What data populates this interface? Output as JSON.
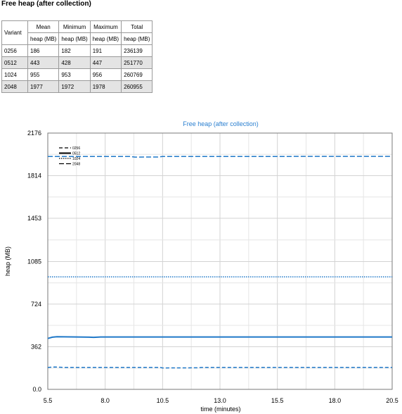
{
  "page": {
    "title": "Free heap (after collection)"
  },
  "table": {
    "header_variant": "Variant",
    "header_top": [
      "Mean",
      "Minimum",
      "Maximum",
      "Total"
    ],
    "header_bottom": [
      "heap (MB)",
      "heap (MB)",
      "heap (MB)",
      "heap (MB)"
    ],
    "rows": [
      [
        "0256",
        "186",
        "182",
        "191",
        "236139"
      ],
      [
        "0512",
        "443",
        "428",
        "447",
        "251770"
      ],
      [
        "1024",
        "955",
        "953",
        "956",
        "260769"
      ],
      [
        "2048",
        "1977",
        "1972",
        "1978",
        "260955"
      ]
    ]
  },
  "chart_data": {
    "type": "line",
    "title": "Free heap (after collection)",
    "xlabel": "time (minutes)",
    "ylabel": "heap (MB)",
    "xlim": [
      5.5,
      20.5
    ],
    "ylim": [
      0,
      2176
    ],
    "x_ticks": [
      "5.5",
      "8.0",
      "10.5",
      "13.0",
      "15.5",
      "18.0",
      "20.5"
    ],
    "y_ticks": [
      "0.0",
      "362",
      "724",
      "1085",
      "1453",
      "1814",
      "2176"
    ],
    "x_tick_values": [
      5.5,
      8.0,
      10.5,
      13.0,
      15.5,
      18.0,
      20.5
    ],
    "y_tick_values": [
      0,
      362,
      724,
      1085,
      1453,
      1814,
      2176
    ],
    "grid": true,
    "legend_position": "top-left",
    "color": "#1f78c8",
    "series": [
      {
        "name": "0256",
        "style": "dashed",
        "points": [
          [
            5.5,
            186
          ],
          [
            5.8,
            190
          ],
          [
            6.2,
            186
          ],
          [
            10.4,
            186
          ],
          [
            10.5,
            182
          ],
          [
            12.0,
            183
          ],
          [
            12.2,
            186
          ],
          [
            20.5,
            186
          ]
        ]
      },
      {
        "name": "0512",
        "style": "solid",
        "points": [
          [
            5.5,
            432
          ],
          [
            5.7,
            443
          ],
          [
            5.9,
            447
          ],
          [
            7.1,
            444
          ],
          [
            7.5,
            442
          ],
          [
            7.8,
            445
          ],
          [
            20.5,
            445
          ]
        ]
      },
      {
        "name": "1024",
        "style": "dotted",
        "points": [
          [
            5.5,
            955
          ],
          [
            20.5,
            955
          ]
        ]
      },
      {
        "name": "2048",
        "style": "longdash",
        "points": [
          [
            5.5,
            1977
          ],
          [
            9.1,
            1977
          ],
          [
            9.3,
            1972
          ],
          [
            10.3,
            1973
          ],
          [
            10.5,
            1977
          ],
          [
            20.5,
            1978
          ]
        ]
      }
    ]
  }
}
